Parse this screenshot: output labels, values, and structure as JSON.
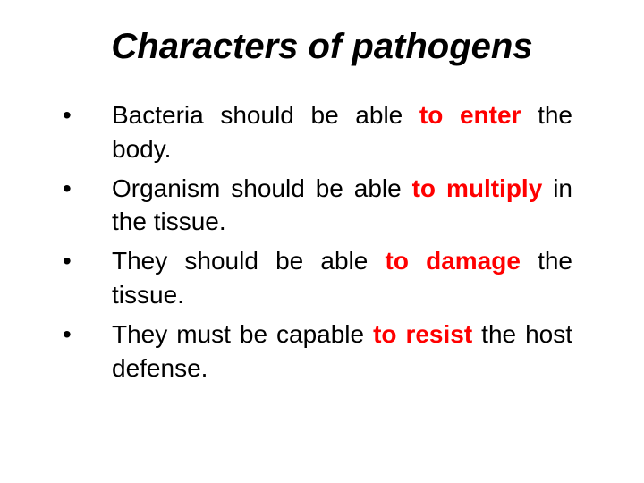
{
  "title": "Characters of pathogens",
  "title_fontsize": 40,
  "title_color": "#000000",
  "title_style": "bold italic",
  "background_color": "#ffffff",
  "body_fontsize": 28,
  "body_color": "#000000",
  "keyword_color": "#ff0000",
  "keyword_weight": "bold",
  "bullet_char": "•",
  "bullets": [
    {
      "pre": "Bacteria should be able ",
      "kw": "to enter",
      "post": " the body."
    },
    {
      "pre": "Organism should be able ",
      "kw": "to multiply",
      "post": " in the tissue."
    },
    {
      "pre": "They should be able ",
      "kw": "to damage",
      "post": " the tissue."
    },
    {
      "pre": "They must be capable ",
      "kw": "to resist",
      "post": " the host defense."
    }
  ]
}
